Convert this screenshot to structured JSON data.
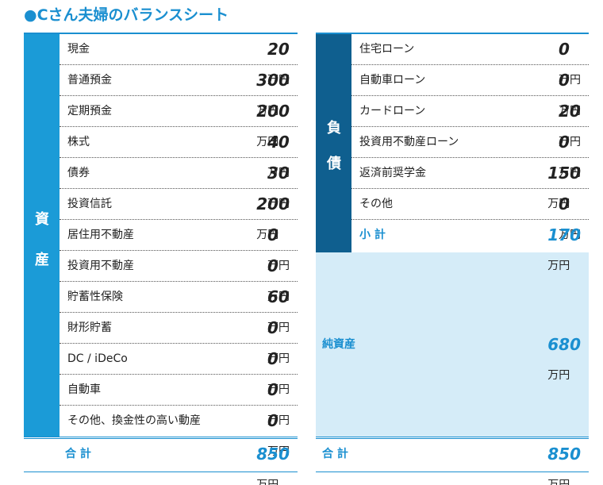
{
  "title": "●Cさん夫婦のバランスシート",
  "assets": {
    "side": [
      "資",
      "産"
    ],
    "rows": [
      {
        "label": "現金",
        "amount": 20,
        "unit": "万円"
      },
      {
        "label": "普通預金",
        "amount": 300,
        "unit": "万円"
      },
      {
        "label": "定期預金",
        "amount": 200,
        "unit": "万円"
      },
      {
        "label": "株式",
        "amount": 40,
        "unit": "万円"
      },
      {
        "label": "債券",
        "amount": 30,
        "unit": "万円"
      },
      {
        "label": "投資信託",
        "amount": 200,
        "unit": "万円"
      },
      {
        "label": "居住用不動産",
        "amount": 0,
        "unit": "万円"
      },
      {
        "label": "投資用不動産",
        "amount": 0,
        "unit": "万円"
      },
      {
        "label": "貯蓄性保険",
        "amount": 60,
        "unit": "万円"
      },
      {
        "label": "財形貯蓄",
        "amount": 0,
        "unit": "万円"
      },
      {
        "label": "DC / iDeCo",
        "amount": 0,
        "unit": "万円"
      },
      {
        "label": "自動車",
        "amount": 0,
        "unit": "万円"
      },
      {
        "label": "その他、換金性の高い動産",
        "amount": 0,
        "unit": "万円"
      }
    ],
    "total": {
      "label": "合 計",
      "amount": 850,
      "unit": "万円"
    }
  },
  "liabilities": {
    "side": [
      "負",
      "債"
    ],
    "rows": [
      {
        "label": "住宅ローン",
        "amount": 0,
        "unit": "万円"
      },
      {
        "label": "自動車ローン",
        "amount": 0,
        "unit": "万円"
      },
      {
        "label": "カードローン",
        "amount": 20,
        "unit": "万円"
      },
      {
        "label": "投資用不動産ローン",
        "amount": 0,
        "unit": "万円"
      },
      {
        "label": "返済前奨学金",
        "amount": 150,
        "unit": "万円"
      },
      {
        "label": "その他",
        "amount": 0,
        "unit": "万円"
      }
    ],
    "subtotal": {
      "label": "小 計",
      "amount": 170,
      "unit": "万円"
    }
  },
  "net_assets": {
    "label": "純資産",
    "amount": 680,
    "unit": "万円"
  },
  "total": {
    "label": "合 計",
    "amount": 850,
    "unit": "万円"
  }
}
